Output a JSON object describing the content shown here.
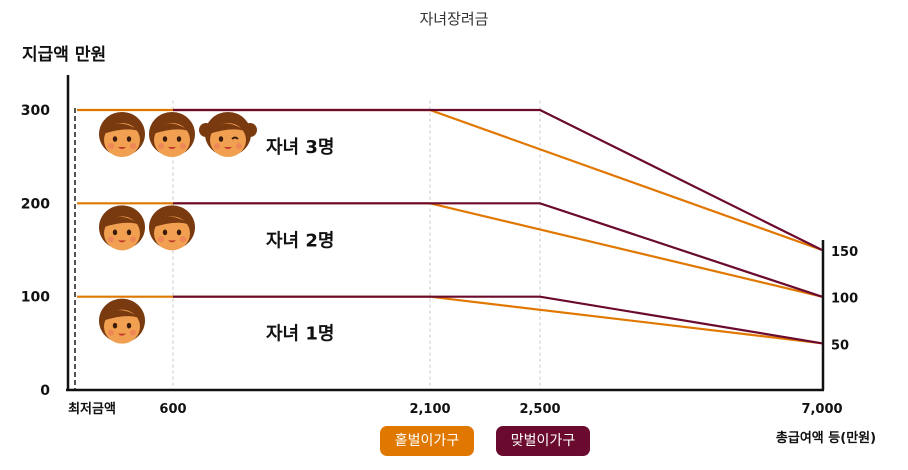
{
  "title": "자녀장려금",
  "legend": [
    {
      "label": "홑벌이가구",
      "color": "#e07800"
    },
    {
      "label": "맞벌이가구",
      "color": "#6b0a2f"
    }
  ],
  "chart_data": {
    "type": "line",
    "title": "자녀장려금",
    "ylabel": "지급액 만원",
    "xlabel": "총급여액 등(만원)",
    "x_ticks": [
      {
        "value": 0,
        "label": "최저금액"
      },
      {
        "value": 600,
        "label": "600"
      },
      {
        "value": 2100,
        "label": "2,100"
      },
      {
        "value": 2500,
        "label": "2,500"
      },
      {
        "value": 7000,
        "label": "7,000"
      }
    ],
    "y_ticks": [
      0,
      100,
      200,
      300
    ],
    "right_ticks": [
      150,
      100,
      50
    ],
    "ylim": [
      0,
      340
    ],
    "xlim": [
      0,
      7000
    ],
    "groups": [
      {
        "label": "자녀 1명",
        "children": 1
      },
      {
        "label": "자녀 2명",
        "children": 2
      },
      {
        "label": "자녀 3명",
        "children": 3
      }
    ],
    "series": [
      {
        "group": 0,
        "household": "single",
        "color": "#e07800",
        "points": [
          [
            0,
            100
          ],
          [
            2100,
            100
          ],
          [
            7000,
            50
          ]
        ]
      },
      {
        "group": 0,
        "household": "dual",
        "color": "#6b0a2f",
        "points": [
          [
            600,
            100
          ],
          [
            2500,
            100
          ],
          [
            7000,
            50
          ]
        ]
      },
      {
        "group": 1,
        "household": "single",
        "color": "#e07800",
        "points": [
          [
            0,
            200
          ],
          [
            2100,
            200
          ],
          [
            7000,
            100
          ]
        ]
      },
      {
        "group": 1,
        "household": "dual",
        "color": "#6b0a2f",
        "points": [
          [
            600,
            200
          ],
          [
            2500,
            200
          ],
          [
            7000,
            100
          ]
        ]
      },
      {
        "group": 2,
        "household": "single",
        "color": "#e07800",
        "points": [
          [
            0,
            300
          ],
          [
            2100,
            300
          ],
          [
            7000,
            150
          ]
        ]
      },
      {
        "group": 2,
        "household": "dual",
        "color": "#6b0a2f",
        "points": [
          [
            600,
            300
          ],
          [
            2500,
            300
          ],
          [
            7000,
            150
          ]
        ]
      }
    ],
    "grid": false,
    "legend_position": "bottom-center"
  }
}
